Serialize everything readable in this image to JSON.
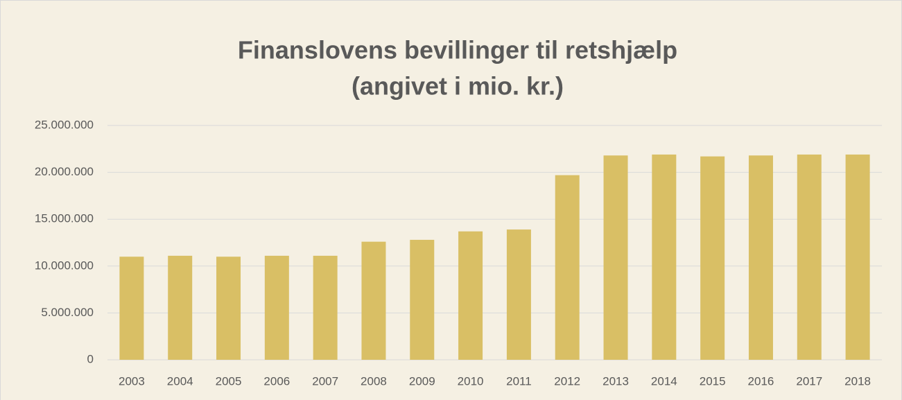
{
  "chart_data": {
    "type": "bar",
    "title": [
      "Finanslovens bevillinger til retshjælp",
      "(angivet i mio. kr.)"
    ],
    "categories": [
      "2003",
      "2004",
      "2005",
      "2006",
      "2007",
      "2008",
      "2009",
      "2010",
      "2011",
      "2012",
      "2013",
      "2014",
      "2015",
      "2016",
      "2017",
      "2018"
    ],
    "values": [
      11000000,
      11100000,
      11000000,
      11100000,
      11100000,
      12600000,
      12800000,
      13700000,
      13900000,
      19700000,
      21800000,
      21900000,
      21700000,
      21800000,
      21900000,
      21900000
    ],
    "color": "#d9bf65",
    "ylim": [
      0,
      25000000
    ],
    "yticks": [
      0,
      {
        "value": 5000000,
        "label": "5.000.000"
      },
      {
        "value": 10000000,
        "label": "10.000.000"
      },
      {
        "value": 15000000,
        "label": "15.000.000"
      },
      {
        "value": 20000000,
        "label": "20.000.000"
      },
      {
        "value": 25000000,
        "label": "25.000.000"
      }
    ],
    "grid": true
  }
}
